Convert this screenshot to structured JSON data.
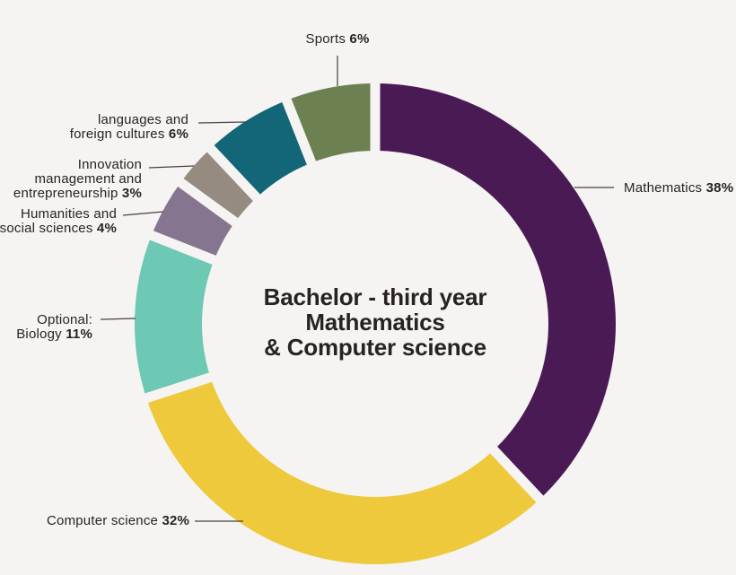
{
  "background_color": "#f5f4f2",
  "text_color": "#29231f",
  "leader_line_color": "#47413c",
  "chart_data": {
    "type": "pie",
    "subtype": "donut",
    "title": "Bachelor - third year Mathematics & Computer science",
    "title_lines": [
      "Bachelor - third year",
      "Mathematics",
      "& Computer science"
    ],
    "units": "%",
    "total": 100,
    "legend_position": "callout-labels-around-ring",
    "segments": [
      {
        "name": "Mathematics",
        "value": 38,
        "color": "#4a1a55",
        "label": {
          "pre1": "",
          "pre2": "",
          "last": "Mathematics",
          "pct": "38%"
        }
      },
      {
        "name": "Computer science",
        "value": 32,
        "color": "#eec93c",
        "label": {
          "pre1": "",
          "pre2": "",
          "last": "Computer science",
          "pct": "32%"
        }
      },
      {
        "name": "Optional: Biology",
        "value": 11,
        "color": "#6dc8b4",
        "label": {
          "pre1": "Optional:",
          "pre2": "",
          "last": "Biology",
          "pct": "11%"
        }
      },
      {
        "name": "Humanities and social sciences",
        "value": 4,
        "color": "#85758f",
        "label": {
          "pre1": "Humanities and",
          "pre2": "",
          "last": "social sciences",
          "pct": "4%"
        }
      },
      {
        "name": "Innovation management and entrepreneurship",
        "value": 3,
        "color": "#958b80",
        "label": {
          "pre1": "Innovation",
          "pre2": "management and",
          "last": "entrepreneurship",
          "pct": "3%"
        }
      },
      {
        "name": "languages and foreign cultures",
        "value": 6,
        "color": "#136678",
        "label": {
          "pre1": "languages and",
          "pre2": "",
          "last": "foreign cultures",
          "pct": "6%"
        }
      },
      {
        "name": "Sports",
        "value": 6,
        "color": "#6d8051",
        "label": {
          "pre1": "",
          "pre2": "",
          "last": "Sports",
          "pct": "6%"
        }
      }
    ]
  }
}
